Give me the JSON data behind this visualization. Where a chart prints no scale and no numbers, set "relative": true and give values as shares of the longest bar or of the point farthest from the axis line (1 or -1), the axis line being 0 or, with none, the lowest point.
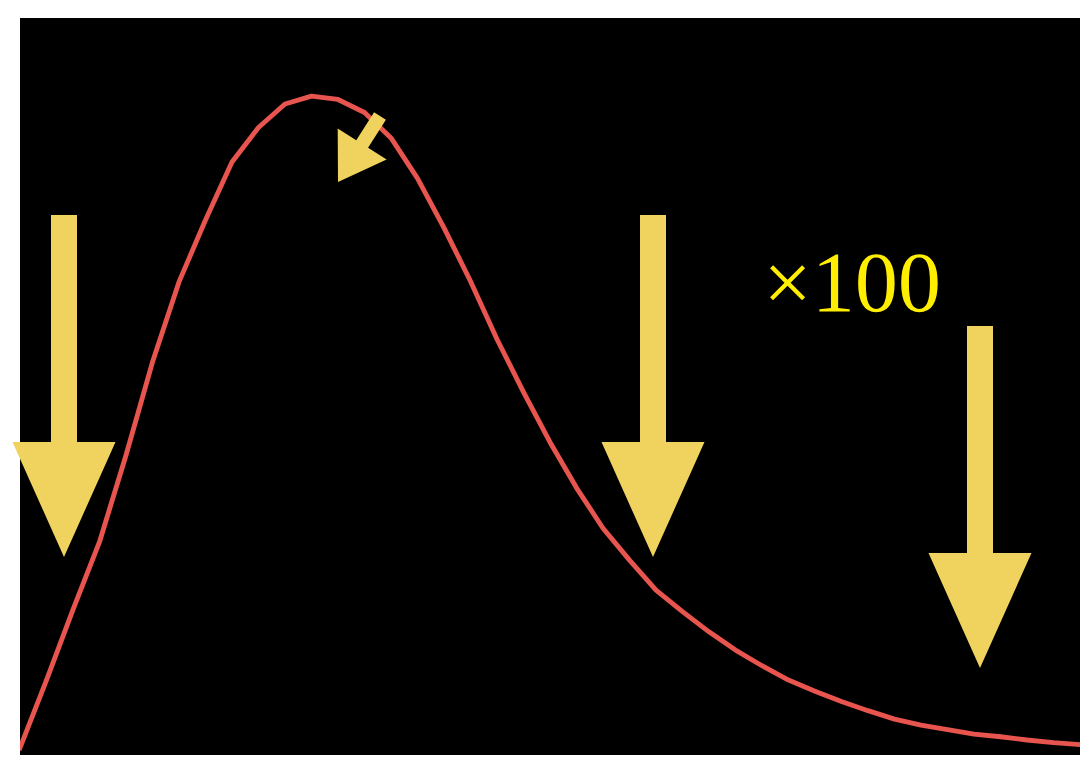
{
  "chart_data": {
    "type": "line",
    "relative": true,
    "categories": [
      null,
      null,
      null,
      null,
      null,
      null,
      null,
      null,
      null,
      null,
      null,
      null,
      null,
      null,
      null,
      null,
      null,
      null,
      null,
      null,
      null,
      null,
      null,
      null,
      null,
      null,
      null,
      null,
      null,
      null,
      null,
      null,
      null,
      null,
      null,
      null,
      null,
      null,
      null,
      null,
      null
    ],
    "series": [
      {
        "color": "#e8554e",
        "values": [
          0,
          0.104,
          0.212,
          0.316,
          0.449,
          0.592,
          0.715,
          0.81,
          0.899,
          0.952,
          0.988,
          1,
          0.995,
          0.975,
          0.936,
          0.874,
          0.798,
          0.716,
          0.627,
          0.546,
          0.469,
          0.399,
          0.337,
          0.288,
          0.242,
          0.209,
          0.178,
          0.15,
          0.126,
          0.104,
          0.087,
          0.071,
          0.057,
          0.044,
          0.035,
          0.028,
          0.021,
          0.017,
          0.012,
          0.008,
          0.005
        ]
      }
    ],
    "annotations": [
      "×100"
    ],
    "grid": false,
    "legend": false,
    "marker": "none",
    "line_style": "solid"
  }
}
